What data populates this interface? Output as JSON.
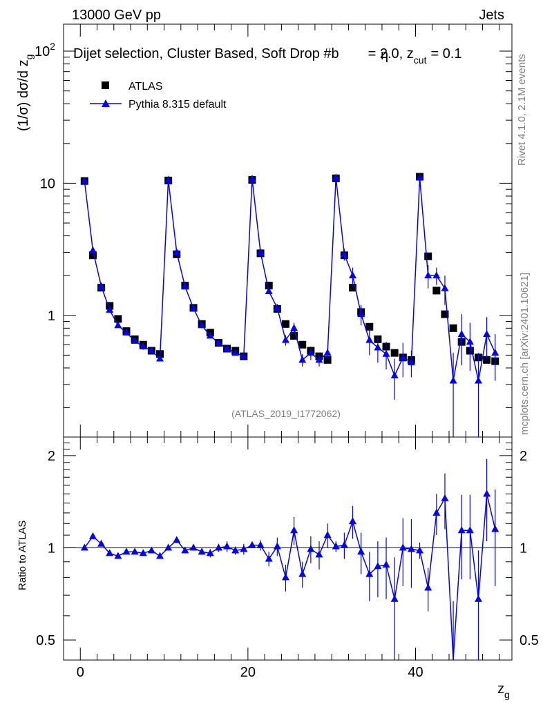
{
  "header": {
    "left": "13000 GeV pp",
    "right": "Jets"
  },
  "side_labels": {
    "rivet": "Rivet 4.1.0,  2.1M events",
    "mcplots": "mcplots.cern.ch [arXiv:2401.10621]"
  },
  "chart_data": [
    {
      "type": "scatter",
      "panel": "main",
      "title": "Dijet selection, Cluster Based, Soft Drop #b",
      "title_suffix": "= 2.0, z",
      "title_sub": "cut",
      "title_end": "= 0.1",
      "title_overlay": "η",
      "ylabel": "(1/σ) dσ/d z",
      "ylabel_sub": "g",
      "xlabel": "z",
      "xlabel_sub": "g",
      "watermark": "(ATLAS_2019_I1772062)",
      "xlim": [
        -2,
        51.5
      ],
      "ylim": [
        0.12,
        160
      ],
      "yscale": "log",
      "yticks": [
        {
          "value": 100,
          "base": "10",
          "exp": "2"
        },
        {
          "value": 10,
          "base": "10",
          "exp": ""
        },
        {
          "value": 1,
          "base": "1",
          "exp": ""
        }
      ],
      "legend": [
        {
          "label": "ATLAS",
          "marker": "square",
          "color": "#000000"
        },
        {
          "label": "Pythia 8.315 default",
          "marker": "triangle",
          "color": "#0000ff"
        }
      ],
      "x": [
        0.5,
        1.5,
        2.5,
        3.5,
        4.5,
        5.5,
        6.5,
        7.5,
        8.5,
        9.5,
        10.5,
        11.5,
        12.5,
        13.5,
        14.5,
        15.5,
        16.5,
        17.5,
        18.5,
        19.5,
        20.5,
        21.5,
        22.5,
        23.5,
        24.5,
        25.5,
        26.5,
        27.5,
        28.5,
        29.5,
        30.5,
        31.5,
        32.5,
        33.5,
        34.5,
        35.5,
        36.5,
        37.5,
        38.5,
        39.5,
        40.5,
        41.5,
        42.5,
        43.5,
        44.5,
        45.5,
        46.5,
        47.5,
        48.5,
        49.5
      ],
      "series": [
        {
          "name": "ATLAS",
          "values": [
            10.4,
            2.85,
            1.62,
            1.18,
            0.94,
            0.76,
            0.66,
            0.6,
            0.54,
            0.51,
            10.5,
            2.9,
            1.68,
            1.14,
            0.86,
            0.74,
            0.62,
            0.56,
            0.54,
            0.49,
            10.6,
            2.95,
            1.68,
            1.12,
            0.86,
            0.7,
            0.6,
            0.54,
            0.49,
            0.46,
            10.9,
            2.85,
            1.62,
            1.06,
            0.82,
            0.66,
            0.58,
            0.52,
            0.48,
            0.46,
            11.2,
            2.8,
            1.54,
            1.02,
            0.8,
            0.63,
            0.54,
            0.48,
            0.46,
            0.45
          ]
        },
        {
          "name": "Pythia 8.315 default",
          "values": [
            10.4,
            3.1,
            1.66,
            1.1,
            0.84,
            0.74,
            0.64,
            0.58,
            0.54,
            0.47,
            10.6,
            3.0,
            1.65,
            1.13,
            0.84,
            0.7,
            0.62,
            0.56,
            0.52,
            0.49,
            10.8,
            3.0,
            1.52,
            1.14,
            0.65,
            0.8,
            0.46,
            0.52,
            0.46,
            0.52,
            11.0,
            2.9,
            2.0,
            1.02,
            0.65,
            0.57,
            0.51,
            0.35,
            0.48,
            0.44,
            11.0,
            2.0,
            2.0,
            1.6,
            0.32,
            0.72,
            0.63,
            0.32,
            0.72,
            0.52
          ],
          "errors": [
            0.2,
            0.1,
            0.05,
            0.05,
            0.03,
            0.03,
            0.03,
            0.03,
            0.02,
            0.02,
            0.2,
            0.1,
            0.05,
            0.05,
            0.03,
            0.03,
            0.03,
            0.03,
            0.02,
            0.02,
            0.3,
            0.12,
            0.06,
            0.08,
            0.06,
            0.08,
            0.05,
            0.06,
            0.05,
            0.05,
            0.4,
            0.3,
            0.3,
            0.18,
            0.15,
            0.13,
            0.12,
            0.12,
            0.14,
            0.1,
            0.8,
            0.4,
            0.3,
            0.4,
            0.2,
            0.3,
            0.25,
            0.2,
            0.25,
            0.2
          ]
        }
      ]
    },
    {
      "type": "scatter",
      "panel": "ratio",
      "ylabel": "Ratio to ATLAS",
      "xlim": [
        -2,
        51.5
      ],
      "ylim": [
        0.43,
        2.3
      ],
      "yscale": "log",
      "yticks": [
        0.5,
        1,
        2
      ],
      "xticks": [
        0,
        20,
        40
      ],
      "reference_line": 1,
      "x": [
        0.5,
        1.5,
        2.5,
        3.5,
        4.5,
        5.5,
        6.5,
        7.5,
        8.5,
        9.5,
        10.5,
        11.5,
        12.5,
        13.5,
        14.5,
        15.5,
        16.5,
        17.5,
        18.5,
        19.5,
        20.5,
        21.5,
        22.5,
        23.5,
        24.5,
        25.5,
        26.5,
        27.5,
        28.5,
        29.5,
        30.5,
        31.5,
        32.5,
        33.5,
        34.5,
        35.5,
        36.5,
        37.5,
        38.5,
        39.5,
        40.5,
        41.5,
        42.5,
        43.5,
        44.5,
        45.5,
        46.5,
        47.5,
        48.5,
        49.5
      ],
      "series": [
        {
          "name": "Pythia 8.315 default / ATLAS",
          "values": [
            1.0,
            1.09,
            1.03,
            0.96,
            0.94,
            0.97,
            0.97,
            0.96,
            0.98,
            0.94,
            1.0,
            1.06,
            0.98,
            1.0,
            0.97,
            0.96,
            1.0,
            1.01,
            0.98,
            0.99,
            1.02,
            1.02,
            0.92,
            1.01,
            0.8,
            1.14,
            0.82,
            0.99,
            0.95,
            1.1,
            1.01,
            1.02,
            1.22,
            0.97,
            0.82,
            0.87,
            0.88,
            0.68,
            1.0,
            0.99,
            0.98,
            0.74,
            1.3,
            1.45,
            0.42,
            1.14,
            1.14,
            0.68,
            1.5,
            1.15
          ],
          "errors": [
            0.01,
            0.02,
            0.01,
            0.01,
            0.01,
            0.01,
            0.01,
            0.01,
            0.02,
            0.02,
            0.01,
            0.02,
            0.02,
            0.02,
            0.02,
            0.03,
            0.03,
            0.04,
            0.03,
            0.04,
            0.02,
            0.04,
            0.05,
            0.07,
            0.08,
            0.12,
            0.08,
            0.1,
            0.1,
            0.1,
            0.04,
            0.1,
            0.15,
            0.15,
            0.15,
            0.18,
            0.2,
            0.25,
            0.25,
            0.25,
            0.06,
            0.12,
            0.2,
            0.3,
            0.25,
            0.35,
            0.35,
            0.3,
            0.45,
            0.4
          ]
        }
      ]
    }
  ]
}
